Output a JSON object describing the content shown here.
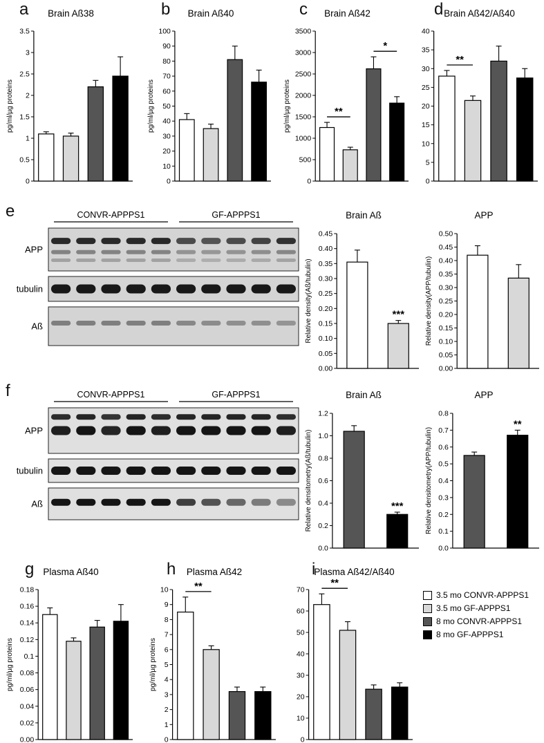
{
  "figure": {
    "groups": [
      {
        "label": "3.5 mo CONVR-APPPS1",
        "color": "#ffffff"
      },
      {
        "label": "3.5 mo GF-APPPS1",
        "color": "#d8d8d8"
      },
      {
        "label": "8 mo CONVR-APPPS1",
        "color": "#555555"
      },
      {
        "label": "8 mo GF-APPPS1",
        "color": "#000000"
      }
    ]
  },
  "chart_data": [
    {
      "type": "bar",
      "letter": "a",
      "title": "Brain Aß38",
      "ylabel": "pg/ml/µg proteins",
      "ylim": [
        0,
        3.5
      ],
      "yticks": [
        "0",
        "0.5",
        "1",
        "1.5",
        "2",
        "2.5",
        "3",
        "3.5"
      ],
      "categories": [
        "3.5 mo CONVR-APPPS1",
        "3.5 mo GF-APPPS1",
        "8 mo CONVR-APPPS1",
        "8 mo GF-APPPS1"
      ],
      "bar_groups": [
        0,
        1,
        2,
        3
      ],
      "values": [
        1.1,
        1.05,
        2.2,
        2.45
      ],
      "errors": [
        0.05,
        0.07,
        0.15,
        0.45
      ],
      "sig": []
    },
    {
      "type": "bar",
      "letter": "b",
      "title": "Brain Aß40",
      "ylabel": "pg/ml/µg proteins",
      "ylim": [
        0,
        100
      ],
      "yticks": [
        "0",
        "10",
        "20",
        "30",
        "40",
        "50",
        "60",
        "70",
        "80",
        "90",
        "100"
      ],
      "categories": [
        "3.5 mo CONVR-APPPS1",
        "3.5 mo GF-APPPS1",
        "8 mo CONVR-APPPS1",
        "8 mo GF-APPPS1"
      ],
      "bar_groups": [
        0,
        1,
        2,
        3
      ],
      "values": [
        41,
        35,
        81,
        66
      ],
      "errors": [
        4,
        3,
        9,
        8
      ],
      "sig": []
    },
    {
      "type": "bar",
      "letter": "c",
      "title": "Brain Aß42",
      "ylabel": "pg/ml/µg proteins",
      "ylim": [
        0,
        3500
      ],
      "yticks": [
        "0",
        "500",
        "1000",
        "1500",
        "2000",
        "2500",
        "3000",
        "3500"
      ],
      "categories": [
        "3.5 mo CONVR-APPPS1",
        "3.5 mo GF-APPPS1",
        "8 mo CONVR-APPPS1",
        "8 mo GF-APPPS1"
      ],
      "bar_groups": [
        0,
        1,
        2,
        3
      ],
      "values": [
        1250,
        730,
        2620,
        1820
      ],
      "errors": [
        120,
        60,
        280,
        150
      ],
      "sig": [
        {
          "bars": [
            0,
            1
          ],
          "label": "**",
          "style": "bracket"
        },
        {
          "bars": [
            2,
            3
          ],
          "label": "*",
          "style": "bracket"
        }
      ]
    },
    {
      "type": "bar",
      "letter": "d",
      "title": "Brain Aß42/Aß40",
      "ylabel": "",
      "ylim": [
        0,
        40
      ],
      "yticks": [
        "0",
        "5",
        "10",
        "15",
        "20",
        "25",
        "30",
        "35",
        "40"
      ],
      "categories": [
        "3.5 mo CONVR-APPPS1",
        "3.5 mo GF-APPPS1",
        "8 mo CONVR-APPPS1",
        "8 mo GF-APPPS1"
      ],
      "bar_groups": [
        0,
        1,
        2,
        3
      ],
      "values": [
        28,
        21.5,
        32,
        27.5
      ],
      "errors": [
        1.5,
        1.2,
        4,
        2.5
      ],
      "sig": [
        {
          "bars": [
            0,
            1
          ],
          "label": "**",
          "style": "bracket"
        }
      ]
    },
    {
      "type": "bar",
      "letter": "",
      "title": "Brain Aß",
      "ylabel": "Relative density(Aß/tubulin)",
      "ylim": [
        0,
        0.45
      ],
      "yticks": [
        "0.00",
        "0.05",
        "0.10",
        "0.15",
        "0.20",
        "0.25",
        "0.30",
        "0.35",
        "0.40",
        "0.45"
      ],
      "categories": [
        "CONVR-APPPS1",
        "GF-APPPS1"
      ],
      "bar_groups": [
        0,
        1
      ],
      "values": [
        0.355,
        0.15
      ],
      "errors": [
        0.04,
        0.01
      ],
      "sig": [
        {
          "bars": [
            1
          ],
          "label": "***",
          "style": "stars"
        }
      ]
    },
    {
      "type": "bar",
      "letter": "",
      "title": "APP",
      "ylabel": "Relative density(APP/tubulin)",
      "ylim": [
        0,
        0.5
      ],
      "yticks": [
        "0.00",
        "0.05",
        "0.10",
        "0.15",
        "0.20",
        "0.25",
        "0.30",
        "0.35",
        "0.40",
        "0.45",
        "0.50"
      ],
      "categories": [
        "CONVR-APPPS1",
        "GF-APPPS1"
      ],
      "bar_groups": [
        0,
        1
      ],
      "values": [
        0.42,
        0.335
      ],
      "errors": [
        0.035,
        0.05
      ],
      "sig": []
    },
    {
      "type": "bar",
      "letter": "",
      "title": "Brain Aß",
      "ylabel": "Relative densitometry(Aß/tubulin)",
      "ylim": [
        0,
        1.2
      ],
      "yticks": [
        "0.0",
        "0.2",
        "0.4",
        "0.6",
        "0.8",
        "1.0",
        "1.2"
      ],
      "categories": [
        "CONVR-APPPS1",
        "GF-APPPS1"
      ],
      "bar_groups": [
        2,
        3
      ],
      "values": [
        1.04,
        0.3
      ],
      "errors": [
        0.05,
        0.02
      ],
      "sig": [
        {
          "bars": [
            1
          ],
          "label": "***",
          "style": "stars"
        }
      ]
    },
    {
      "type": "bar",
      "letter": "",
      "title": "APP",
      "ylabel": "Relative densitometry(APP/tubulin)",
      "ylim": [
        0,
        0.8
      ],
      "yticks": [
        "0.0",
        "0.1",
        "0.2",
        "0.3",
        "0.4",
        "0.5",
        "0.6",
        "0.7",
        "0.8"
      ],
      "categories": [
        "CONVR-APPPS1",
        "GF-APPPS1"
      ],
      "bar_groups": [
        2,
        3
      ],
      "values": [
        0.55,
        0.67
      ],
      "errors": [
        0.02,
        0.03
      ],
      "sig": [
        {
          "bars": [
            1
          ],
          "label": "**",
          "style": "stars"
        }
      ]
    },
    {
      "type": "bar",
      "letter": "g",
      "title": "Plasma Aß40",
      "ylabel": "pg/ml/µg proteins",
      "ylim": [
        0,
        0.18
      ],
      "yticks": [
        "0.00",
        "0.02",
        "0.04",
        "0.06",
        "0.08",
        "0.1",
        "0.12",
        "0.14",
        "0.16",
        "0.18"
      ],
      "categories": [
        "3.5 mo CONVR-APPPS1",
        "3.5 mo GF-APPPS1",
        "8 mo CONVR-APPPS1",
        "8 mo GF-APPPS1"
      ],
      "bar_groups": [
        0,
        1,
        2,
        3
      ],
      "values": [
        0.15,
        0.118,
        0.135,
        0.142
      ],
      "errors": [
        0.008,
        0.004,
        0.008,
        0.02
      ],
      "sig": []
    },
    {
      "type": "bar",
      "letter": "h",
      "title": "Plasma Aß42",
      "ylabel": "pg/ml/µg proteins",
      "ylim": [
        0,
        10
      ],
      "yticks": [
        "0",
        "1",
        "2",
        "3",
        "4",
        "5",
        "6",
        "7",
        "8",
        "9",
        "10"
      ],
      "categories": [
        "3.5 mo CONVR-APPPS1",
        "3.5 mo GF-APPPS1",
        "8 mo CONVR-APPPS1",
        "8 mo GF-APPPS1"
      ],
      "bar_groups": [
        0,
        1,
        2,
        3
      ],
      "values": [
        8.5,
        6,
        3.2,
        3.2
      ],
      "errors": [
        1,
        0.25,
        0.3,
        0.3
      ],
      "sig": [
        {
          "bars": [
            0,
            1
          ],
          "label": "**",
          "style": "bracket"
        }
      ]
    },
    {
      "type": "bar",
      "letter": "i",
      "title": "Plasma Aß42/Aß40",
      "ylabel": "",
      "ylim": [
        0,
        70
      ],
      "yticks": [
        "0",
        "10",
        "20",
        "30",
        "40",
        "50",
        "60",
        "70"
      ],
      "categories": [
        "3.5 mo CONVR-APPPS1",
        "3.5 mo GF-APPPS1",
        "8 mo CONVR-APPPS1",
        "8 mo GF-APPPS1"
      ],
      "bar_groups": [
        0,
        1,
        2,
        3
      ],
      "values": [
        63,
        51,
        23.5,
        24.5
      ],
      "errors": [
        5,
        4,
        2,
        2
      ],
      "sig": [
        {
          "bars": [
            0,
            1
          ],
          "label": "**",
          "style": "bracket"
        }
      ]
    }
  ],
  "blots": [
    {
      "letter": "e",
      "groups": [
        "CONVR-APPPS1",
        "GF-APPPS1"
      ],
      "lanes_per_group": 5,
      "bg": "#d4d4d4",
      "rows": [
        {
          "label": "APP",
          "height": 62,
          "bands": [
            {
              "y": 0.3,
              "h": 9,
              "base": 0.85
            },
            {
              "y": 0.56,
              "h": 6,
              "base": 0.4
            },
            {
              "y": 0.75,
              "h": 5,
              "base": 0.25
            }
          ],
          "lane_mod": [
            1,
            1,
            1,
            1,
            1,
            0.8,
            0.75,
            0.8,
            0.85,
            0.95
          ]
        },
        {
          "label": "tubulin",
          "height": 36,
          "bands": [
            {
              "y": 0.5,
              "h": 13,
              "base": 0.93
            }
          ],
          "lane_mod": [
            1,
            1,
            1,
            1,
            1,
            1,
            1,
            1,
            1,
            1
          ]
        },
        {
          "label": "Aß",
          "height": 56,
          "bands": [
            {
              "y": 0.42,
              "h": 7,
              "base": 0.42
            }
          ],
          "lane_mod": [
            1,
            1,
            1,
            1,
            1,
            0.9,
            0.85,
            0.8,
            0.8,
            0.75
          ]
        }
      ]
    },
    {
      "letter": "f",
      "groups": [
        "CONVR-APPPS1",
        "GF-APPPS1"
      ],
      "lanes_per_group": 5,
      "bg": "#e0e0e0",
      "rows": [
        {
          "label": "APP",
          "height": 66,
          "bands": [
            {
              "y": 0.2,
              "h": 8,
              "base": 0.88
            },
            {
              "y": 0.5,
              "h": 13,
              "base": 0.95
            }
          ],
          "lane_mod": [
            0.95,
            1,
            0.92,
            1,
            0.95,
            1,
            1,
            1,
            1,
            0.95
          ]
        },
        {
          "label": "tubulin",
          "height": 34,
          "bands": [
            {
              "y": 0.5,
              "h": 12,
              "base": 0.95
            }
          ],
          "lane_mod": [
            1,
            1,
            1,
            1,
            1,
            1,
            1,
            1,
            1,
            1
          ]
        },
        {
          "label": "Aß",
          "height": 46,
          "bands": [
            {
              "y": 0.45,
              "h": 10,
              "base": 0.95
            }
          ],
          "lane_mod": [
            1,
            1,
            1,
            1,
            1,
            0.8,
            0.7,
            0.6,
            0.5,
            0.42
          ]
        }
      ]
    }
  ]
}
